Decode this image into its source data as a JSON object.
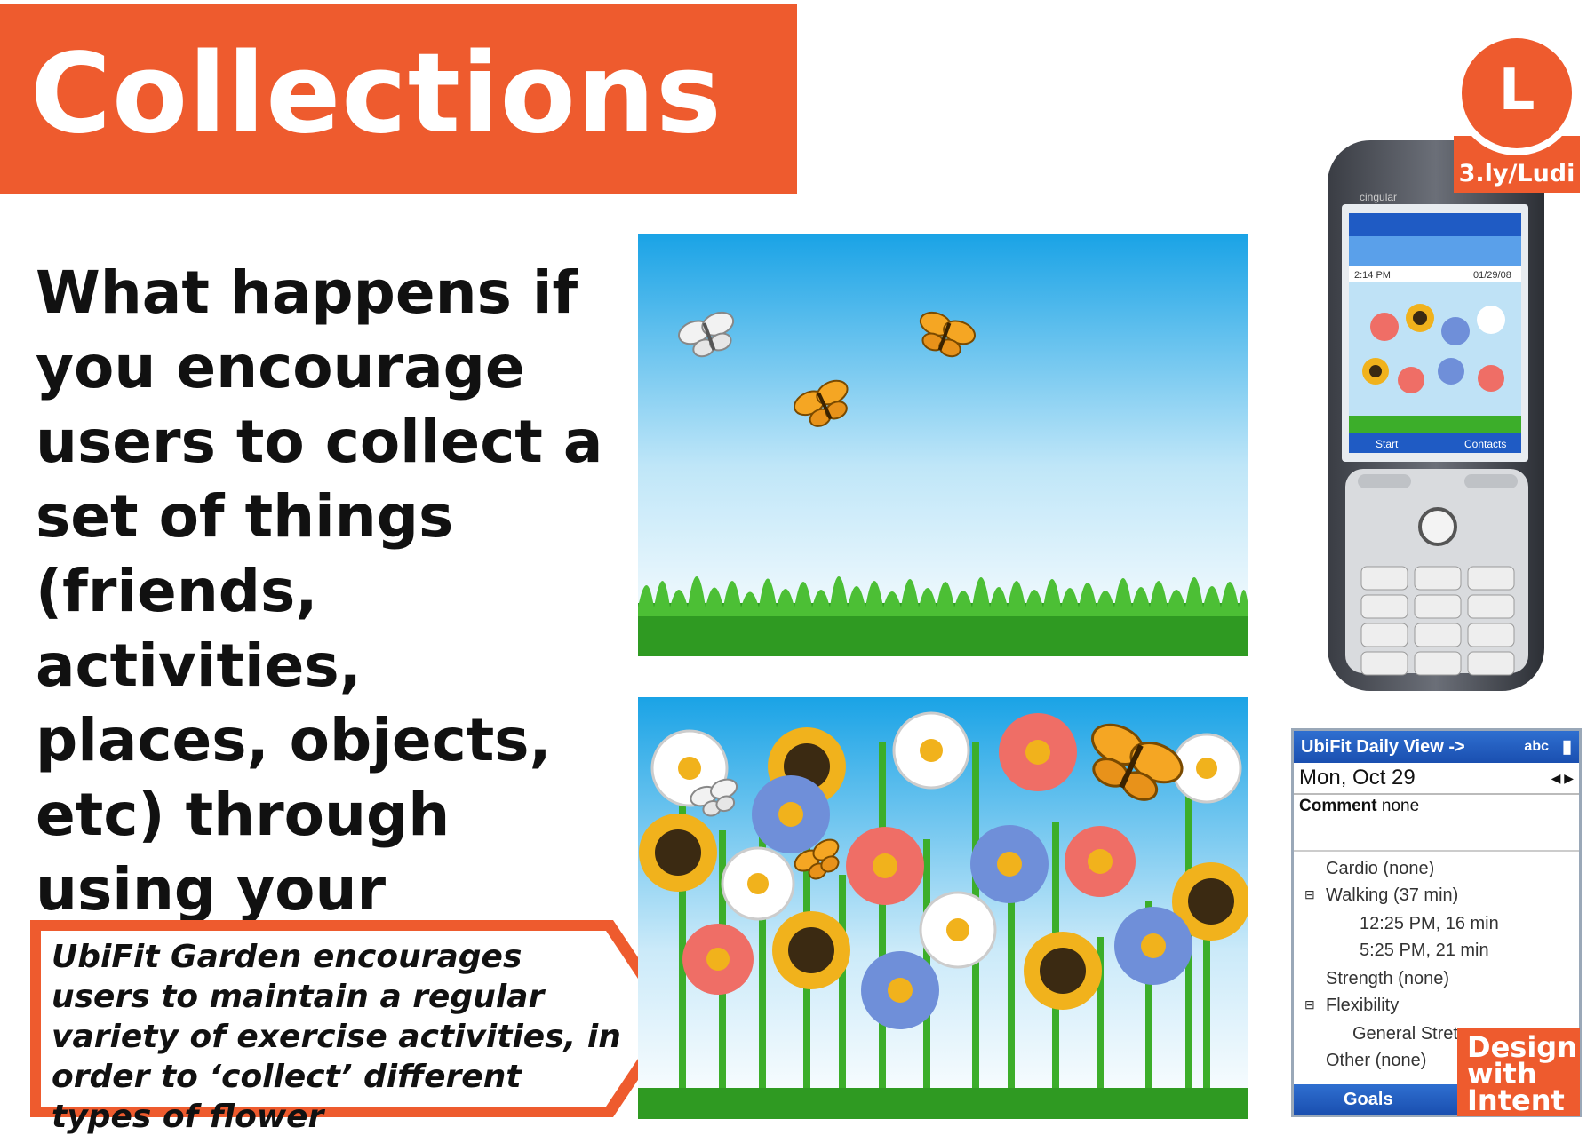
{
  "slide": {
    "title": "Collections",
    "question": "What happens if you encourage users to collect a set of things (friends, activities, places, objects, etc) through using your system?",
    "callout": "UbiFit Garden encourages users to maintain a regular variety of exercise activities, in order to ‘collect’ different types of flower",
    "logo_letter": "L",
    "logo_url": "3.ly/Ludi",
    "badge_lines": [
      "Design",
      "with",
      "Intent"
    ]
  },
  "phone": {
    "carrier": "cingular",
    "clock_top": "2:14 PM",
    "date_top": "01/29/08",
    "softkey_left": "Start",
    "softkey_right": "Contacts"
  },
  "ubifit": {
    "header": "UbiFit Daily View ->",
    "header_right": "abc",
    "date": "Mon, Oct 29",
    "comment_label": "Comment",
    "comment_value": "none",
    "rows": [
      "Cardio (none)",
      "Walking (37 min)",
      "12:25 PM, 16 min",
      "5:25 PM, 21 min",
      "Strength (none)",
      "Flexibility",
      "General Stretc",
      "Other (none)"
    ],
    "footer_left": "Goals"
  },
  "colors": {
    "accent": "#ee5b2e",
    "sky_top": "#1aa3e6",
    "grass": "#3cae2a"
  }
}
